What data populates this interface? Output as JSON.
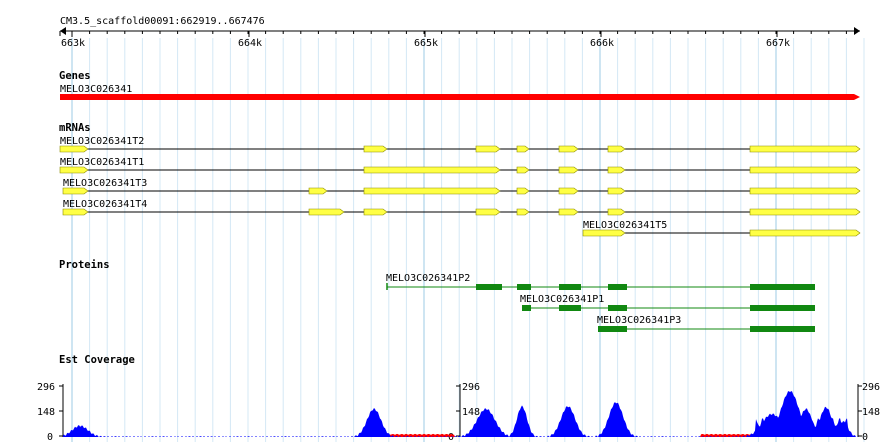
{
  "locus": "CM3.5_scaffold00091:662919..667476",
  "ruler_ticks": [
    "663k",
    "664k",
    "665k",
    "666k",
    "667k"
  ],
  "tracks": {
    "genes": {
      "title": "Genes",
      "items": [
        {
          "name": "MELO3C026341",
          "color": "#ff0000"
        }
      ]
    },
    "mrnas": {
      "title": "mRNAs",
      "color": "#ffff44",
      "items": [
        {
          "name": "MELO3C026341T2"
        },
        {
          "name": "MELO3C026341T1"
        },
        {
          "name": "MELO3C026341T3"
        },
        {
          "name": "MELO3C026341T4"
        },
        {
          "name": "MELO3C026341T5"
        }
      ]
    },
    "proteins": {
      "title": "Proteins",
      "color": "#118811",
      "items": [
        {
          "name": "MELO3C026341P2"
        },
        {
          "name": "MELO3C026341P1"
        },
        {
          "name": "MELO3C026341P3"
        }
      ]
    },
    "est": {
      "title": "Est Coverage",
      "y_labels": [
        "296",
        "148",
        "0"
      ],
      "colors": {
        "positive": "#0000ff",
        "negative": "#ff0000"
      }
    }
  }
}
